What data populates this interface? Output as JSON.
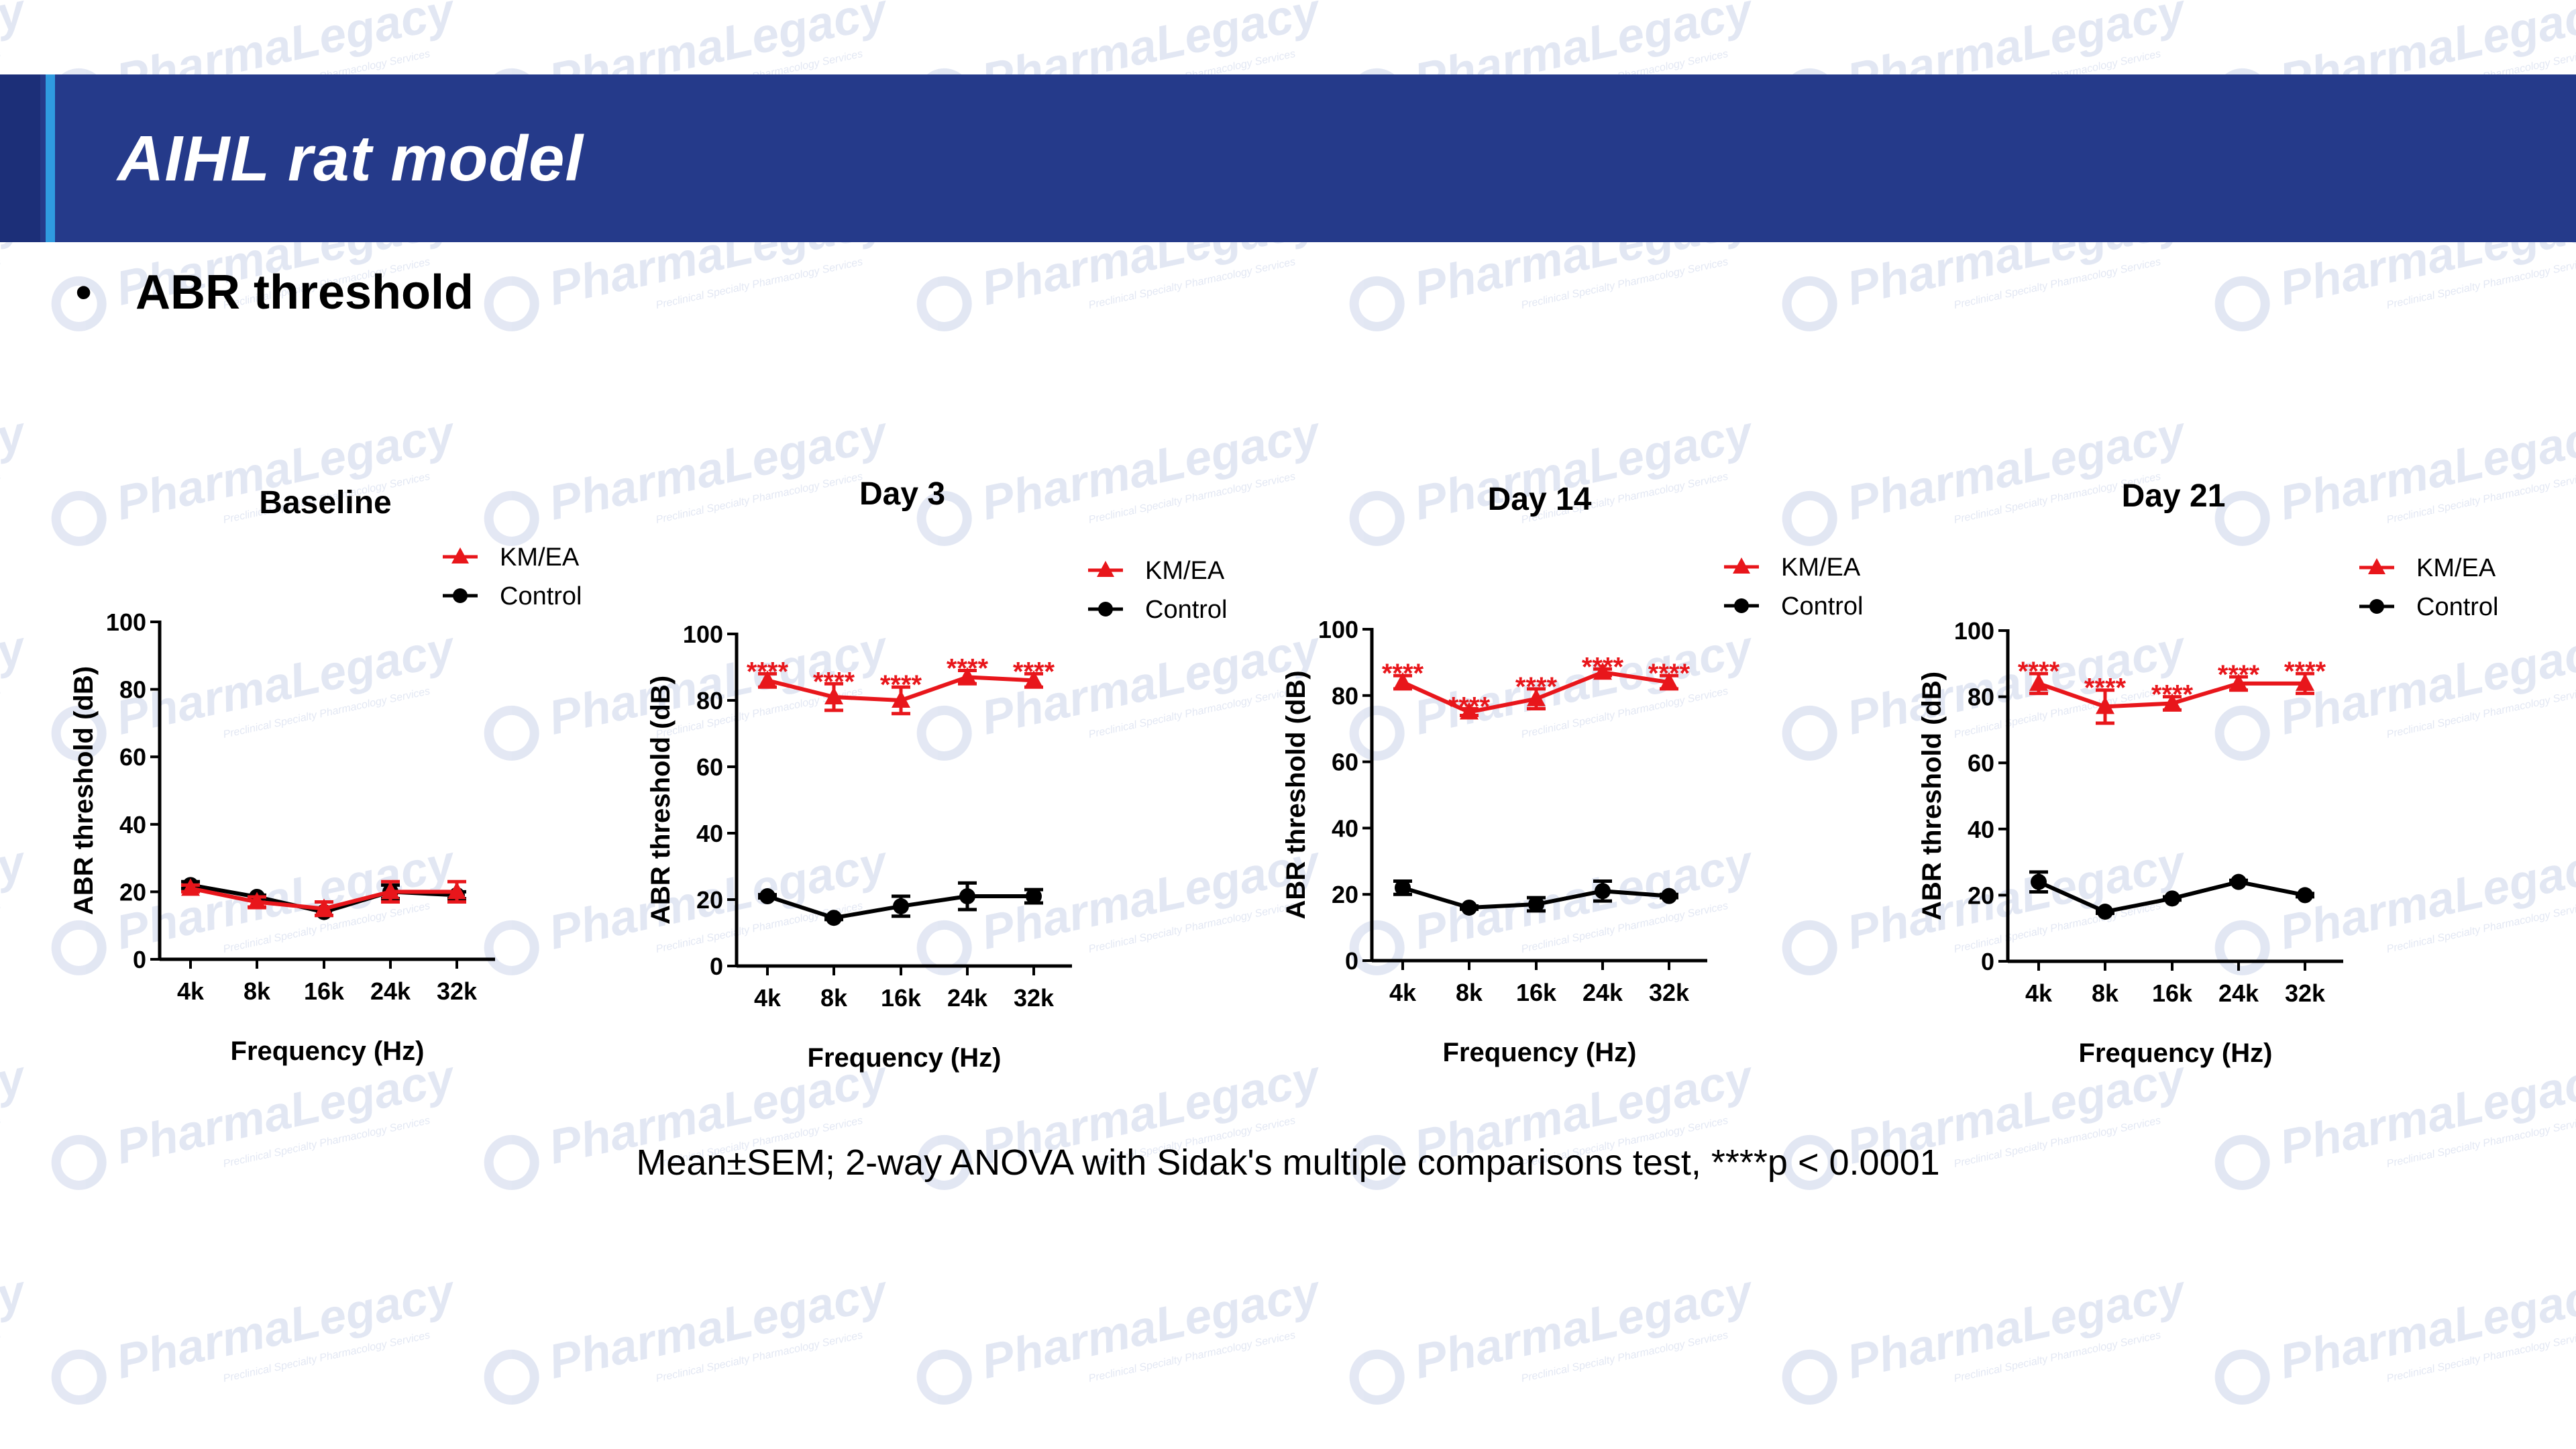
{
  "slide": {
    "title": "AIHL rat model",
    "bullet": "ABR threshold",
    "footnote": "Mean±SEM; 2-way ANOVA with Sidak's multiple comparisons test, ****p < 0.0001",
    "watermark": "PharmaLegacy",
    "watermark_sub": "Preclinical Specialty Pharmacology Services"
  },
  "colors": {
    "banner": "#253a8a",
    "accent": "#2f9be0",
    "kmea": "#e8161b",
    "control": "#000000"
  },
  "chart_data": [
    {
      "type": "line",
      "title": "Baseline",
      "xlabel": "Frequency (Hz)",
      "ylabel": "ABR threshold (dB)",
      "categories": [
        "4k",
        "8k",
        "16k",
        "24k",
        "32k"
      ],
      "ylim": [
        0,
        100
      ],
      "yticks": [
        "0",
        "20",
        "40",
        "60",
        "80",
        "100"
      ],
      "legend": "top-right",
      "significance": "",
      "series": [
        {
          "name": "KM/EA",
          "values": [
            21,
            17,
            15,
            20,
            20
          ],
          "sem": [
            1,
            1.5,
            2,
            3,
            3
          ]
        },
        {
          "name": "Control",
          "values": [
            22,
            18.5,
            14,
            20,
            19
          ],
          "sem": [
            1,
            0.5,
            1,
            2,
            1
          ]
        }
      ]
    },
    {
      "type": "line",
      "title": "Day 3",
      "xlabel": "Frequency (Hz)",
      "ylabel": "ABR threshold (dB)",
      "categories": [
        "4k",
        "8k",
        "16k",
        "24k",
        "32k"
      ],
      "ylim": [
        0,
        100
      ],
      "yticks": [
        "0",
        "20",
        "40",
        "60",
        "80",
        "100"
      ],
      "legend": "top-right",
      "significance": "****",
      "series": [
        {
          "name": "KM/EA",
          "values": [
            86,
            81,
            80,
            87,
            86
          ],
          "sem": [
            2,
            4,
            4,
            2,
            2
          ]
        },
        {
          "name": "Control",
          "values": [
            21,
            14.5,
            18,
            21,
            21
          ],
          "sem": [
            0.5,
            0.5,
            3,
            4,
            2
          ]
        }
      ]
    },
    {
      "type": "line",
      "title": "Day 14",
      "xlabel": "Frequency (Hz)",
      "ylabel": "ABR threshold (dB)",
      "categories": [
        "4k",
        "8k",
        "16k",
        "24k",
        "32k"
      ],
      "ylim": [
        0,
        100
      ],
      "yticks": [
        "0",
        "20",
        "40",
        "60",
        "80",
        "100"
      ],
      "legend": "top-right",
      "significance": "****",
      "series": [
        {
          "name": "KM/EA",
          "values": [
            84,
            75,
            79,
            87,
            84
          ],
          "sem": [
            2,
            1,
            3,
            1,
            2
          ]
        },
        {
          "name": "Control",
          "values": [
            22,
            16,
            17,
            21,
            19.5
          ],
          "sem": [
            2,
            0.5,
            2,
            3,
            0.5
          ]
        }
      ]
    },
    {
      "type": "line",
      "title": "Day 21",
      "xlabel": "Frequency (Hz)",
      "ylabel": "ABR threshold (dB)",
      "categories": [
        "4k",
        "8k",
        "16k",
        "24k",
        "32k"
      ],
      "ylim": [
        0,
        100
      ],
      "yticks": [
        "0",
        "20",
        "40",
        "60",
        "80",
        "100"
      ],
      "legend": "top-right",
      "significance": "****",
      "series": [
        {
          "name": "KM/EA",
          "values": [
            84,
            77,
            78,
            84,
            84
          ],
          "sem": [
            3,
            5,
            2,
            2,
            3
          ]
        },
        {
          "name": "Control",
          "values": [
            24,
            15,
            19,
            24,
            20
          ],
          "sem": [
            3,
            0.5,
            0.5,
            0.5,
            0.5
          ]
        }
      ]
    }
  ]
}
